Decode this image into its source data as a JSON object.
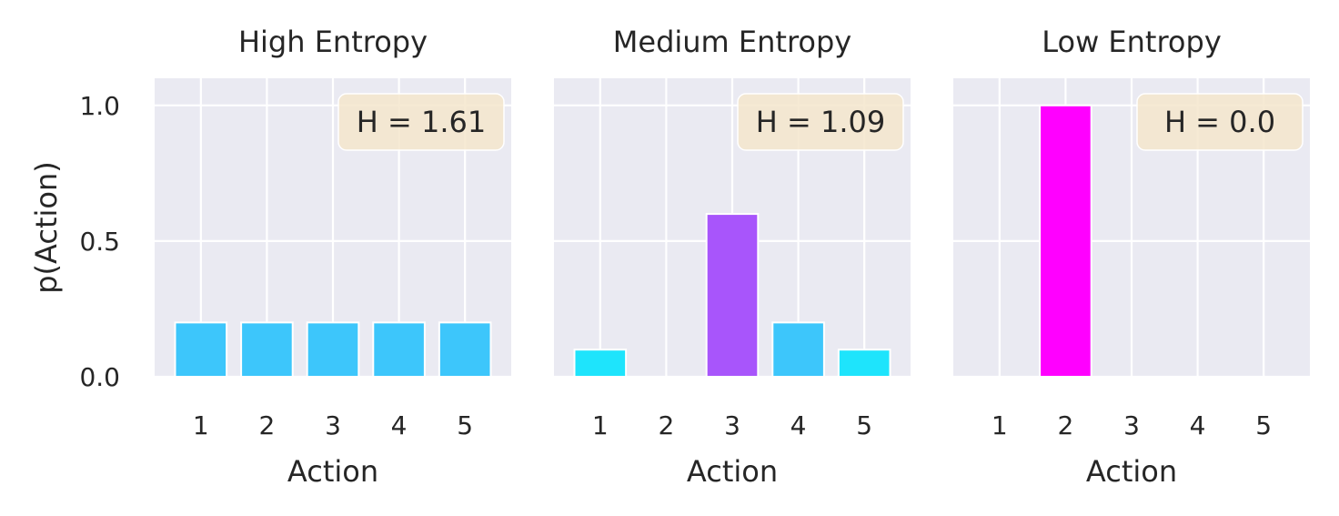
{
  "chart_data": [
    {
      "type": "bar",
      "title": "High Entropy",
      "xlabel": "Action",
      "ylabel": "p(Action)",
      "categories": [
        "1",
        "2",
        "3",
        "4",
        "5"
      ],
      "values": [
        0.2,
        0.2,
        0.2,
        0.2,
        0.2
      ],
      "bar_colors": [
        "#3dc6fb",
        "#3dc6fb",
        "#3dc6fb",
        "#3dc6fb",
        "#3dc6fb"
      ],
      "annotation": "H = 1.61",
      "ylim": [
        0,
        1.1
      ],
      "yticks": [
        0.0,
        0.5,
        1.0
      ],
      "ytick_labels": [
        "0.0",
        "0.5",
        "1.0"
      ],
      "grid": true
    },
    {
      "type": "bar",
      "title": "Medium Entropy",
      "xlabel": "Action",
      "ylabel": "",
      "categories": [
        "1",
        "2",
        "3",
        "4",
        "5"
      ],
      "values": [
        0.1,
        0.0,
        0.6,
        0.2,
        0.1
      ],
      "bar_colors": [
        "#1ee4fc",
        "#1ee4fc",
        "#a855fb",
        "#3dc6fb",
        "#1ee4fc"
      ],
      "annotation": "H = 1.09",
      "ylim": [
        0,
        1.1
      ],
      "yticks": [
        0.0,
        0.5,
        1.0
      ],
      "ytick_labels": [],
      "grid": true
    },
    {
      "type": "bar",
      "title": "Low Entropy",
      "xlabel": "Action",
      "ylabel": "",
      "categories": [
        "1",
        "2",
        "3",
        "4",
        "5"
      ],
      "values": [
        0.0,
        1.0,
        0.0,
        0.0,
        0.0
      ],
      "bar_colors": [
        "#ff00ff",
        "#ff00ff",
        "#ff00ff",
        "#ff00ff",
        "#ff00ff"
      ],
      "annotation": "H = 0.0",
      "ylim": [
        0,
        1.1
      ],
      "yticks": [
        0.0,
        0.5,
        1.0
      ],
      "ytick_labels": [],
      "grid": true
    }
  ],
  "colors": {
    "axes_background": "#eaeaf2",
    "grid": "#ffffff",
    "annotation_box": "#f5e6cc",
    "text": "#262626"
  }
}
